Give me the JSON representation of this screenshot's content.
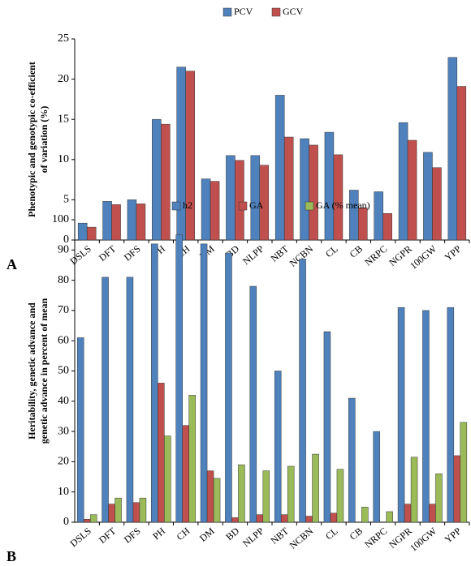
{
  "chart_data": [
    {
      "type": "bar",
      "label": "A",
      "ylabel": [
        "Phenotypic and genotypic co-efficient",
        "of variation (%)"
      ],
      "categories": [
        "DSLS",
        "DFT",
        "DFS",
        "PH",
        "CH",
        "DM",
        "BD",
        "NLPP",
        "NBT",
        "NCBN",
        "CL",
        "CB",
        "NRPC",
        "NGPR",
        "100GW",
        "YPP"
      ],
      "series": [
        {
          "name": "PCV",
          "color": "#4f81bd",
          "values": [
            2.1,
            4.8,
            5.0,
            15.0,
            21.5,
            7.6,
            10.5,
            10.5,
            18.0,
            12.6,
            13.4,
            6.2,
            6.0,
            14.6,
            10.9,
            22.7
          ]
        },
        {
          "name": "GCV",
          "color": "#c0504d",
          "values": [
            1.6,
            4.4,
            4.5,
            14.4,
            21.0,
            7.3,
            9.9,
            9.3,
            12.8,
            11.8,
            10.6,
            4.0,
            3.3,
            12.4,
            9.0,
            19.1
          ]
        }
      ],
      "ylim": [
        0,
        25
      ],
      "yticks": [
        0,
        5,
        10,
        15,
        20,
        25
      ],
      "grid": false,
      "legend": "top"
    },
    {
      "type": "bar",
      "label": "B",
      "ylabel": [
        "Heritability, genetic advance and",
        "genetic advance in percent of mean"
      ],
      "categories": [
        "DSLS",
        "DFT",
        "DFS",
        "PH",
        "CH",
        "DM",
        "BD",
        "NLPP",
        "NBT",
        "NCBN",
        "CL",
        "CB",
        "NRPC",
        "NGPR",
        "100GW",
        "YPP"
      ],
      "series": [
        {
          "name": "h2",
          "color": "#4f81bd",
          "values": [
            61,
            81,
            81,
            92,
            95,
            92,
            89,
            78,
            50,
            87,
            63,
            41,
            30,
            71,
            70,
            71
          ]
        },
        {
          "name": "GA",
          "color": "#c0504d",
          "values": [
            1,
            6,
            6.5,
            46,
            32,
            17,
            1.5,
            2.5,
            2.5,
            2,
            3,
            0,
            0,
            6,
            6,
            22
          ]
        },
        {
          "name": "GA (% mean)",
          "color": "#9bbb59",
          "values": [
            2.5,
            8,
            8,
            28.5,
            42,
            14.5,
            19,
            17,
            18.5,
            22.5,
            17.5,
            5,
            3.5,
            21.5,
            16,
            33
          ]
        }
      ],
      "ylim": [
        0,
        100
      ],
      "yticks": [
        0,
        10,
        20,
        30,
        40,
        50,
        60,
        70,
        80,
        90,
        100
      ],
      "grid": false,
      "legend": "top"
    }
  ]
}
